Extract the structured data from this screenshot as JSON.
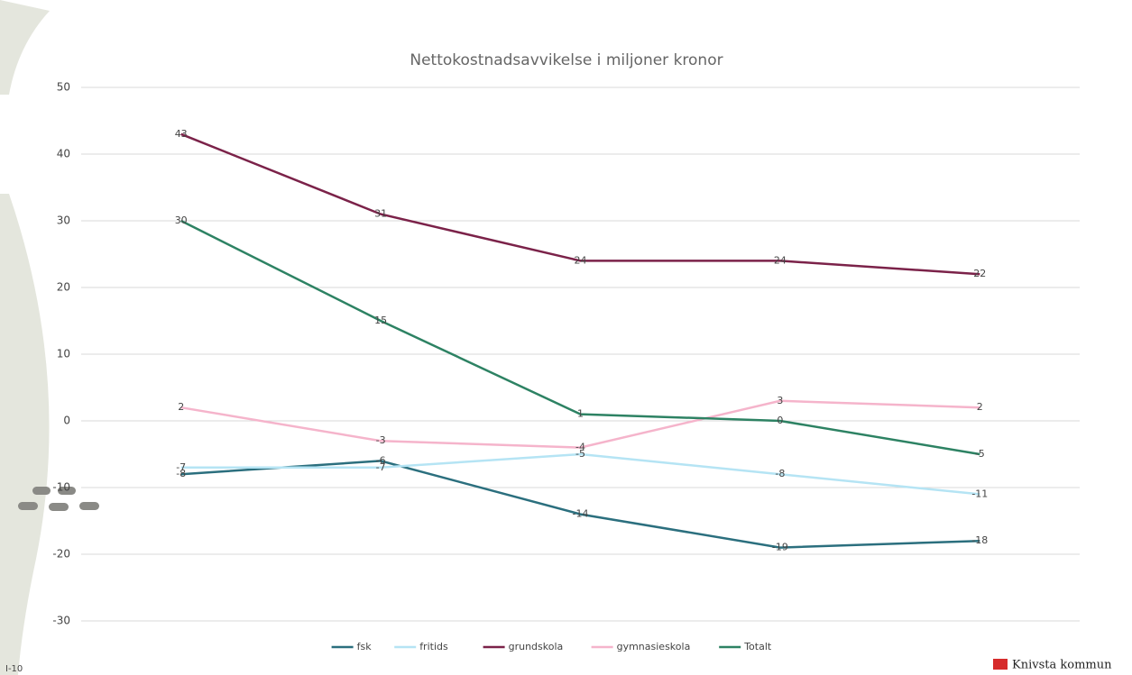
{
  "chart_data": {
    "type": "line",
    "title": "Nettokostnadsavvikelse i miljoner kronor",
    "categories": [
      null,
      null,
      null,
      null,
      null
    ],
    "series": [
      {
        "name": "fsk",
        "color": "#2b6f7e",
        "values": [
          -8,
          -6,
          -14,
          -19,
          -18
        ]
      },
      {
        "name": "fritids",
        "color": "#b5e4f4",
        "values": [
          -7,
          -7,
          -5,
          -8,
          -11
        ]
      },
      {
        "name": "grundskola",
        "color": "#7b2249",
        "values": [
          43,
          31,
          24,
          24,
          22
        ]
      },
      {
        "name": "gymnasieskola",
        "color": "#f5b4cb",
        "values": [
          2,
          -3,
          -4,
          3,
          2
        ]
      },
      {
        "name": "Totalt",
        "color": "#2d8263",
        "values": [
          30,
          15,
          1,
          0,
          -5
        ]
      }
    ],
    "ylim": [
      -30,
      50
    ],
    "yticks": [
      -30,
      -20,
      -10,
      0,
      10,
      20,
      30,
      40,
      50
    ],
    "grid": true,
    "legend": "bottom"
  },
  "slide": {
    "number": "I-10",
    "logo": "Knivsta kommun"
  }
}
